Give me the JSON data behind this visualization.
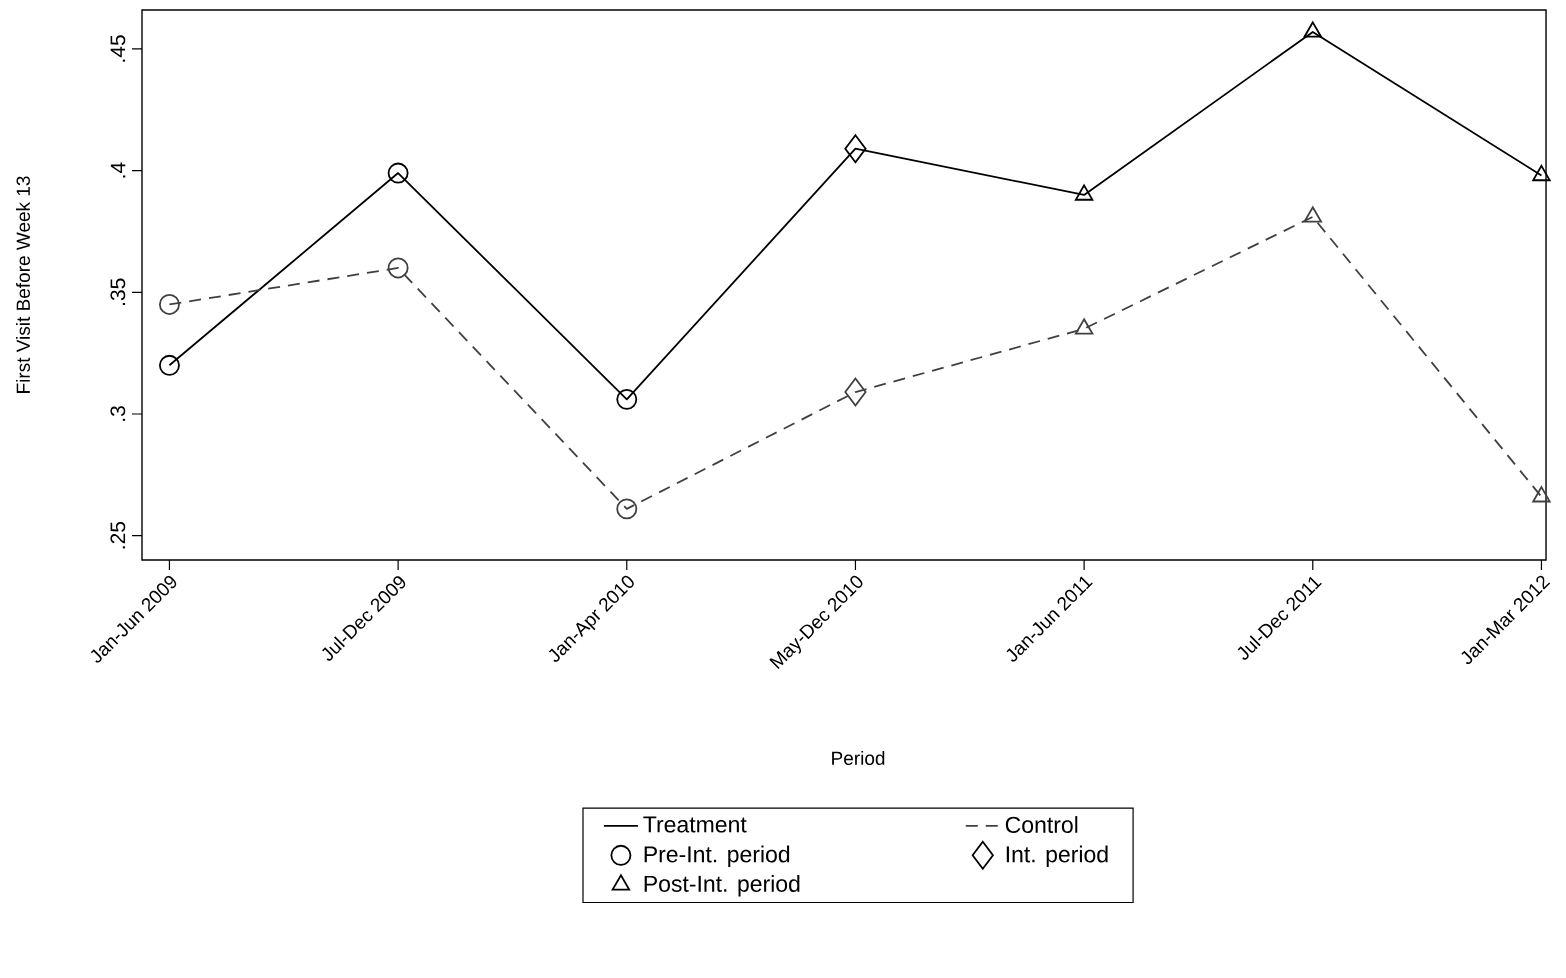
{
  "chart_data": {
    "type": "line",
    "xlabel": "Period",
    "ylabel": "First Visit Before Week 13",
    "categories": [
      "Jan-Jun 2009",
      "Jul-Dec 2009",
      "Jan-Apr 2010",
      "May-Dec 2010",
      "Jan-Jun 2011",
      "Jul-Dec 2011",
      "Jan-Mar 2012"
    ],
    "ylim": [
      0.24,
      0.466
    ],
    "yticks": [
      {
        "value": 0.25,
        "label": ".25"
      },
      {
        "value": 0.3,
        "label": ".3"
      },
      {
        "value": 0.35,
        "label": ".35"
      },
      {
        "value": 0.4,
        "label": ".4"
      },
      {
        "value": 0.45,
        "label": ".45"
      }
    ],
    "grid": false,
    "legend": "bottom",
    "series": [
      {
        "name": "Treatment",
        "color": "#000000",
        "line_style": "solid",
        "marker": "none",
        "values": [
          0.32,
          0.399,
          0.306,
          0.409,
          0.39,
          0.457,
          0.398
        ]
      },
      {
        "name": "Control",
        "color": "#404040",
        "line_style": "dashed",
        "marker": "none",
        "values": [
          0.345,
          0.36,
          0.261,
          0.309,
          0.335,
          0.381,
          0.266
        ]
      },
      {
        "name": "Pre-Int. period",
        "type": "scatter",
        "color": "#000000",
        "marker": "circle",
        "values": [
          0.32,
          0.399,
          0.306,
          null,
          null,
          null,
          null
        ]
      },
      {
        "name": "Int. period",
        "type": "scatter",
        "color": "#000000",
        "marker": "diamond",
        "values": [
          null,
          null,
          null,
          0.409,
          null,
          null,
          null
        ]
      },
      {
        "name": "Post-Int. period",
        "type": "scatter",
        "color": "#000000",
        "marker": "triangle",
        "values": [
          null,
          null,
          null,
          null,
          0.39,
          0.457,
          0.398
        ]
      },
      {
        "type": "scatter",
        "color": "#404040",
        "marker": "circle",
        "values": [
          0.345,
          0.36,
          0.261,
          null,
          null,
          null,
          null
        ]
      },
      {
        "type": "scatter",
        "color": "#404040",
        "marker": "diamond",
        "values": [
          null,
          null,
          null,
          0.309,
          null,
          null,
          null
        ]
      },
      {
        "type": "scatter",
        "color": "#404040",
        "marker": "triangle",
        "values": [
          null,
          null,
          null,
          null,
          0.335,
          0.381,
          0.266
        ]
      }
    ]
  }
}
